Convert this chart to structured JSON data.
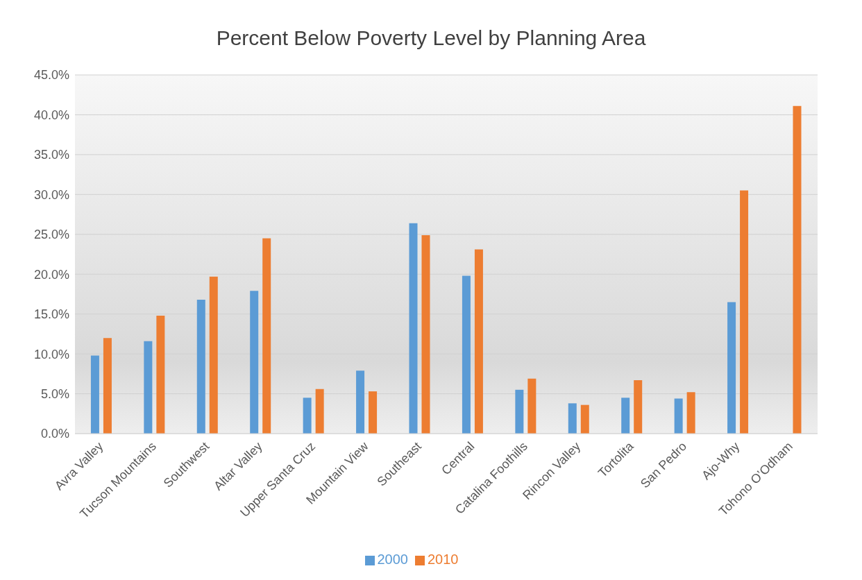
{
  "chart_data": {
    "type": "bar",
    "title": "Percent Below Poverty Level by Planning Area",
    "categories": [
      "Avra Valley",
      "Tucson Mountains",
      "Southwest",
      "Altar Valley",
      "Upper Santa Cruz",
      "Mountain View",
      "Southeast",
      "Central",
      "Catalina Foothills",
      "Rincon Valley",
      "Tortolita",
      "San Pedro",
      "Ajo-Why",
      "Tohono O’Odham"
    ],
    "series": [
      {
        "name": "2000",
        "color": "#5b9bd5",
        "values": [
          9.8,
          11.6,
          16.8,
          17.9,
          4.5,
          7.9,
          26.4,
          19.8,
          5.5,
          3.8,
          4.5,
          4.4,
          16.5,
          null
        ]
      },
      {
        "name": "2010",
        "color": "#ed7d31",
        "values": [
          12.0,
          14.8,
          19.7,
          24.5,
          5.6,
          5.3,
          24.9,
          23.1,
          6.9,
          3.6,
          6.7,
          5.2,
          30.5,
          41.1
        ]
      }
    ],
    "ylim": [
      0,
      45
    ],
    "yticks": [
      {
        "value": 0,
        "label": "0.0%"
      },
      {
        "value": 5,
        "label": "5.0%"
      },
      {
        "value": 10,
        "label": "10.0%"
      },
      {
        "value": 15,
        "label": "15.0%"
      },
      {
        "value": 20,
        "label": "20.0%"
      },
      {
        "value": 25,
        "label": "25.0%"
      },
      {
        "value": 30,
        "label": "30.0%"
      },
      {
        "value": 35,
        "label": "35.0%"
      },
      {
        "value": 40,
        "label": "40.0%"
      },
      {
        "value": 45,
        "label": "45.0%"
      }
    ],
    "grid": "y",
    "legend": "bottom"
  }
}
